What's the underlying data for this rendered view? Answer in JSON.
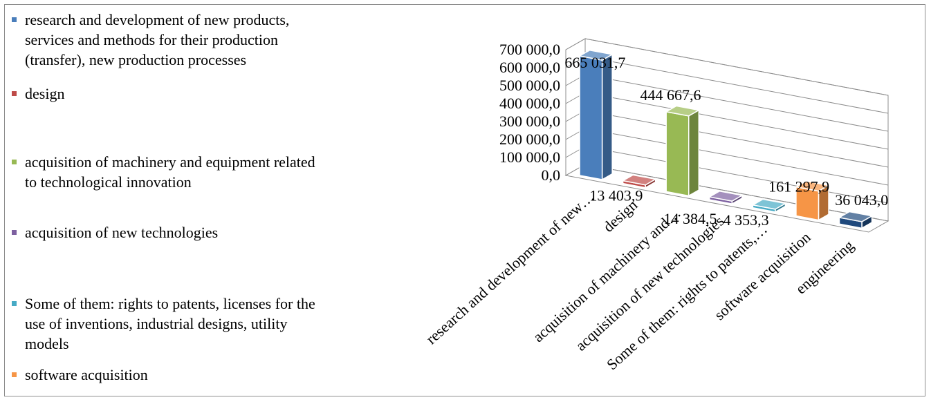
{
  "chart_data": {
    "type": "bar",
    "categories": [
      "research and development of new products, services and methods for their production (transfer), new production processes",
      "design",
      "acquisition of machinery and equipment related to technological innovation",
      "acquisition of new technologies",
      "Some of them: rights to patents, licenses for the use of inventions, industrial designs, utility models",
      "software acquisition",
      "engineering"
    ],
    "category_axis_labels": [
      "research and development of new…",
      "design",
      "acquisition of machinery and…",
      "acquisition of new technologies",
      "Some of them: rights to patents,…",
      "software acquisition",
      "engineering"
    ],
    "values": [
      665031.7,
      13403.9,
      444667.6,
      14384.5,
      4353.3,
      161297.9,
      36043.0
    ],
    "data_labels": [
      "665 031,7",
      "13 403,9",
      "444 667,6",
      "14 384,5",
      "4 353,3",
      "161 297,9",
      "36 043,0"
    ],
    "colors": [
      "#4a7ebb",
      "#be4b48",
      "#98b954",
      "#7d60a0",
      "#46aac5",
      "#f69546",
      "#1f497d"
    ],
    "ylim": [
      0,
      700000
    ],
    "yticks": [
      0,
      100000,
      200000,
      300000,
      400000,
      500000,
      600000,
      700000
    ],
    "ytick_labels": [
      "0,0",
      "100 000,0",
      "200 000,0",
      "300 000,0",
      "400 000,0",
      "500 000,0",
      "600 000,0",
      "700 000,0"
    ],
    "legend": [
      "research and development of new products, services and methods for their production (transfer), new production processes",
      "design",
      "acquisition of machinery and equipment related to technological innovation",
      "acquisition of new technologies",
      "Some of them: rights to patents, licenses for the use of inventions, industrial designs, utility models",
      "software acquisition"
    ],
    "legend_position": "left",
    "style": "3d-column",
    "grid": true
  }
}
